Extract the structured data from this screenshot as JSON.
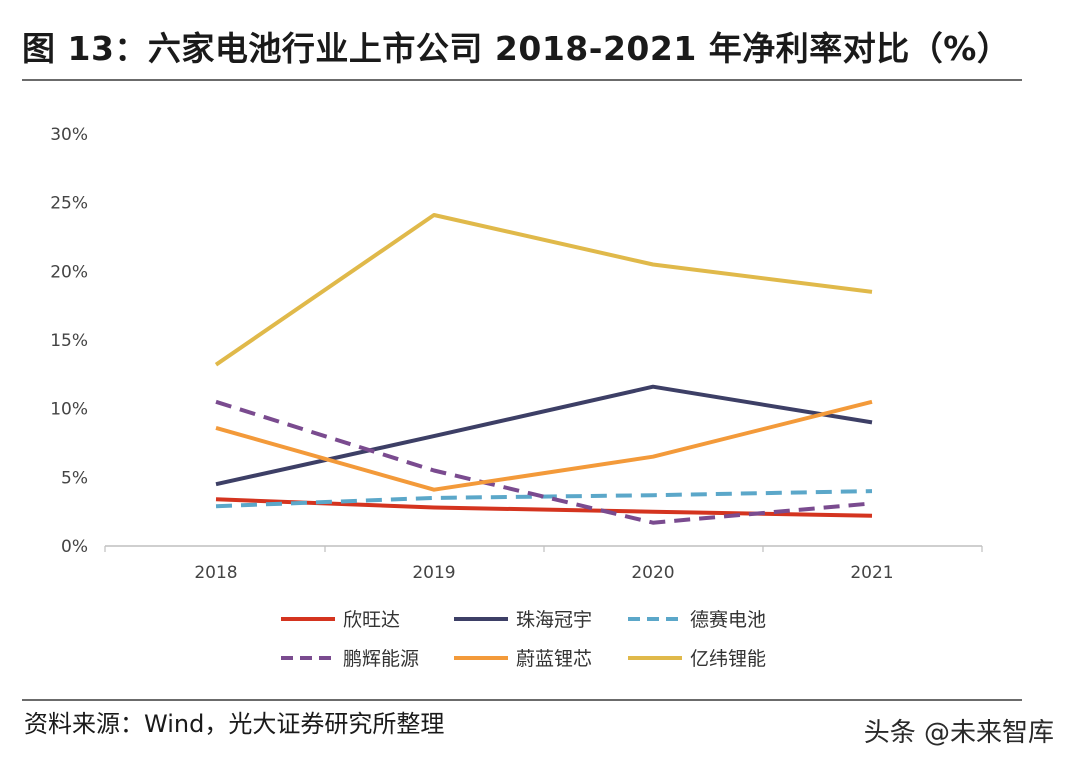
{
  "figure": {
    "title": "图 13：六家电池行业上市公司 2018-2021 年净利率对比（%）",
    "source": "资料来源：Wind，光大证券研究所整理",
    "watermark": "头条 @未来智库",
    "watermark_badge": "未来智库"
  },
  "chart_data": {
    "type": "line",
    "title": "六家电池行业上市公司 2018-2021 年净利率对比（%）",
    "xlabel": "",
    "ylabel": "",
    "categories": [
      "2018",
      "2019",
      "2020",
      "2021"
    ],
    "ylim": [
      0,
      30
    ],
    "yticks": [
      0,
      5,
      10,
      15,
      20,
      25,
      30
    ],
    "ytick_labels": [
      "0%",
      "5%",
      "10%",
      "15%",
      "20%",
      "25%",
      "30%"
    ],
    "legend_position": "bottom",
    "grid": false,
    "series": [
      {
        "name": "欣旺达",
        "values": [
          3.4,
          2.8,
          2.5,
          2.2
        ],
        "color": "#d4341f",
        "dash": "solid"
      },
      {
        "name": "珠海冠宇",
        "values": [
          4.5,
          8.0,
          11.6,
          9.0
        ],
        "color": "#3d3f66",
        "dash": "solid"
      },
      {
        "name": "德赛电池",
        "values": [
          2.9,
          3.5,
          3.7,
          4.0
        ],
        "color": "#5ba7c9",
        "dash": "dashed"
      },
      {
        "name": "鹏辉能源",
        "values": [
          10.5,
          5.5,
          1.7,
          3.1
        ],
        "color": "#7a4b8f",
        "dash": "dashed"
      },
      {
        "name": "蔚蓝锂芯",
        "values": [
          8.6,
          4.1,
          6.5,
          10.5
        ],
        "color": "#f39a3a",
        "dash": "solid"
      },
      {
        "name": "亿纬锂能",
        "values": [
          13.2,
          24.1,
          20.5,
          18.5
        ],
        "color": "#e0b94a",
        "dash": "solid"
      }
    ]
  }
}
